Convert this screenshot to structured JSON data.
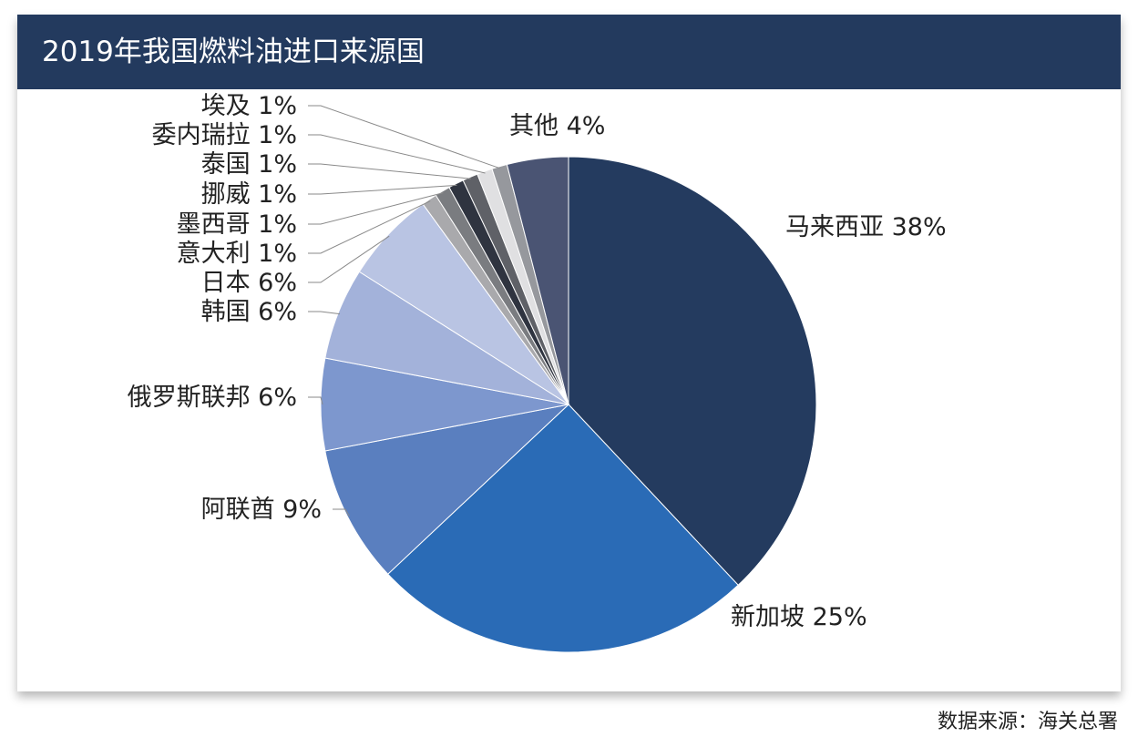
{
  "title": "2019年我国燃料油进口来源国",
  "source": "数据来源：海关总署",
  "chart_data": {
    "type": "pie",
    "start_angle_deg": 0,
    "direction": "clockwise",
    "slices": [
      {
        "label": "马来西亚 38%",
        "value": 38,
        "color": "#243b5f"
      },
      {
        "label": "新加坡 25%",
        "value": 25,
        "color": "#2a6bb6"
      },
      {
        "label": "阿联酋 9%",
        "value": 9,
        "color": "#5a7fbf"
      },
      {
        "label": "俄罗斯联邦 6%",
        "value": 6,
        "color": "#7d97ce"
      },
      {
        "label": "韩国 6%",
        "value": 6,
        "color": "#a3b2da"
      },
      {
        "label": "日本 6%",
        "value": 6,
        "color": "#b9c4e3"
      },
      {
        "label": "意大利 1%",
        "value": 1,
        "color": "#a9a9ac"
      },
      {
        "label": "墨西哥 1%",
        "value": 1,
        "color": "#7a7c80"
      },
      {
        "label": "挪威 1%",
        "value": 1,
        "color": "#2f3440"
      },
      {
        "label": "泰国 1%",
        "value": 1,
        "color": "#5f6167"
      },
      {
        "label": "委内瑞拉 1%",
        "value": 1,
        "color": "#e0e0e2"
      },
      {
        "label": "埃及 1%",
        "value": 1,
        "color": "#96989d"
      },
      {
        "label": "其他 4%",
        "value": 4,
        "color": "#4a5473"
      }
    ]
  }
}
